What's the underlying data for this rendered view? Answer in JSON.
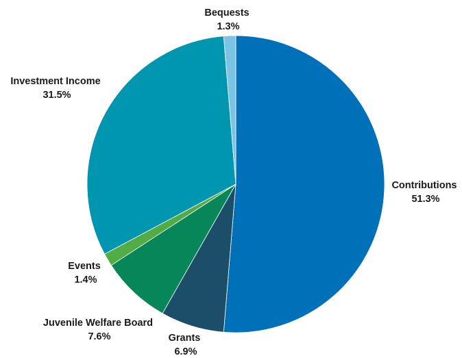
{
  "chart_data": {
    "type": "pie",
    "title": "",
    "start_angle_deg": 0,
    "direction": "clockwise",
    "slices": [
      {
        "name": "Contributions",
        "value": 51.3,
        "label": "51.3%",
        "color": "#0070b8"
      },
      {
        "name": "Grants",
        "value": 6.9,
        "label": "6.9%",
        "color": "#1b4f69"
      },
      {
        "name": "Juvenile Welfare Board",
        "value": 7.6,
        "label": "7.6%",
        "color": "#078659"
      },
      {
        "name": "Events",
        "value": 1.4,
        "label": "1.4%",
        "color": "#52ac45"
      },
      {
        "name": "Investment Income",
        "value": 31.5,
        "label": "31.5%",
        "color": "#0096b0"
      },
      {
        "name": "Bequests",
        "value": 1.3,
        "label": "1.3%",
        "color": "#7cc4e6"
      }
    ]
  }
}
